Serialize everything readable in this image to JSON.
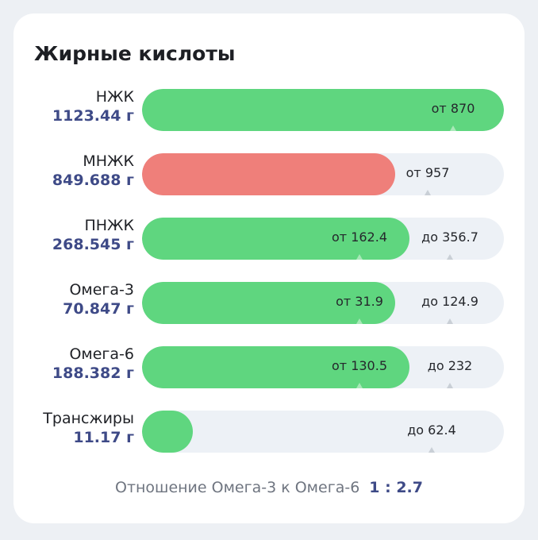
{
  "title": "Жирные кислоты",
  "colors": {
    "ok": "#5fd67f",
    "bad": "#ef7f7a",
    "track": "#edf1f6",
    "accent": "#3e4a87"
  },
  "rows": [
    {
      "name": "НЖК",
      "amount": "1123.44 г",
      "status": "ok",
      "fill": 1.0,
      "marks": [
        {
          "text": "от 870",
          "pos": 0.86
        }
      ]
    },
    {
      "name": "МНЖК",
      "amount": "849.688 г",
      "status": "bad",
      "fill": 0.7,
      "marks": [
        {
          "text": "от 957",
          "pos": 0.79
        }
      ]
    },
    {
      "name": "ПНЖК",
      "amount": "268.545 г",
      "status": "ok",
      "fill": 0.74,
      "marks": [
        {
          "text": "от 162.4",
          "pos": 0.6
        },
        {
          "text": "до 356.7",
          "pos": 0.85
        }
      ]
    },
    {
      "name": "Омега-3",
      "amount": "70.847 г",
      "status": "ok",
      "fill": 0.7,
      "marks": [
        {
          "text": "от 31.9",
          "pos": 0.6
        },
        {
          "text": "до 124.9",
          "pos": 0.85
        }
      ]
    },
    {
      "name": "Омега-6",
      "amount": "188.382 г",
      "status": "ok",
      "fill": 0.74,
      "marks": [
        {
          "text": "от 130.5",
          "pos": 0.6
        },
        {
          "text": "до 232",
          "pos": 0.85
        }
      ]
    },
    {
      "name": "Трансжиры",
      "amount": "11.17 г",
      "status": "ok",
      "fill": 0.14,
      "marks": [
        {
          "text": "до 62.4",
          "pos": 0.8
        }
      ]
    }
  ],
  "ratio": {
    "label": "Отношение Омега-3 к Омега-6",
    "value": "1 : 2.7"
  }
}
